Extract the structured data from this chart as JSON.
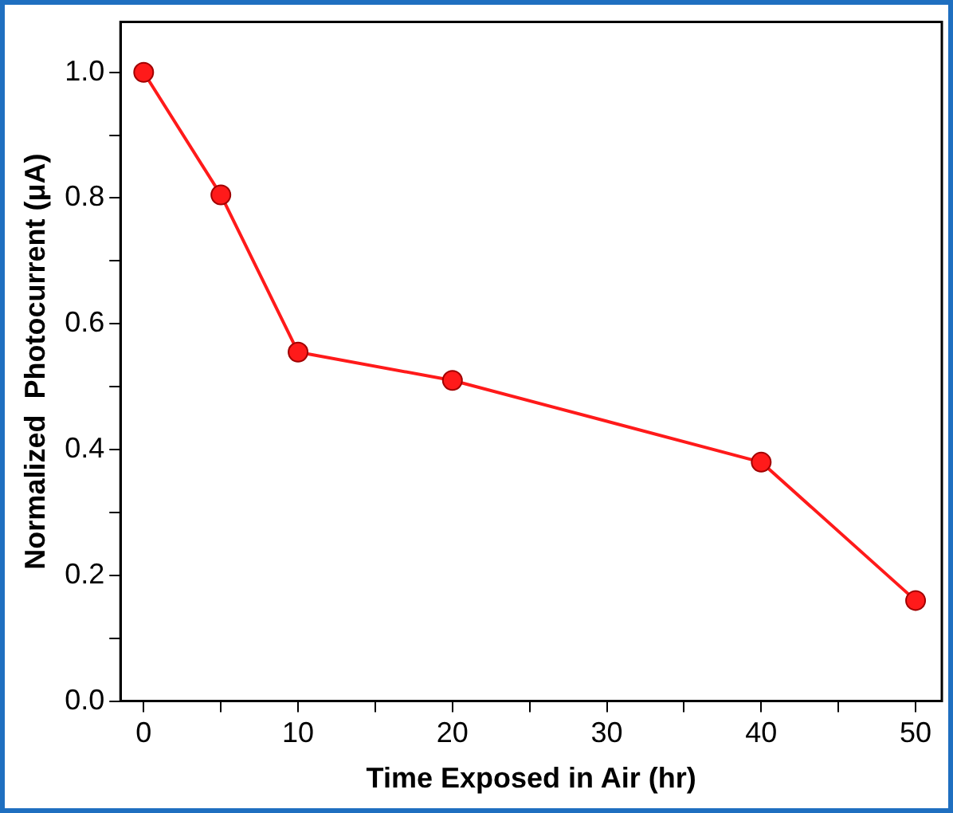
{
  "chart_data": {
    "type": "line",
    "xlabel": "Time Exposed in Air (hr)",
    "ylabel": "Normalized  Photocurrent (μA)",
    "x": [
      0,
      5,
      10,
      20,
      40,
      50
    ],
    "series": [
      {
        "color": "#ff1a1a",
        "values": [
          1.0,
          0.805,
          0.555,
          0.51,
          0.38,
          0.16
        ]
      }
    ],
    "xlim": [
      -1.5,
      51.7
    ],
    "ylim": [
      0,
      1.08
    ],
    "xticks": [
      0,
      {
        "value": 5,
        "label": null
      },
      10,
      {
        "value": 15,
        "label": null
      },
      20,
      {
        "value": 25,
        "label": null
      },
      30,
      {
        "value": 35,
        "label": null
      },
      40,
      {
        "value": 45,
        "label": null
      },
      50
    ],
    "yticks": [
      {
        "value": 0,
        "label": "0.0"
      },
      {
        "value": 0.1,
        "label": null
      },
      0.2,
      {
        "value": 0.3,
        "label": null
      },
      0.4,
      {
        "value": 0.5,
        "label": null
      },
      0.6,
      {
        "value": 0.7,
        "label": null
      },
      0.8,
      {
        "value": 0.9,
        "label": null
      },
      {
        "value": 1,
        "label": "1.0"
      }
    ],
    "grid": false,
    "legend": false,
    "marker": "circle",
    "line_style": "solid"
  }
}
